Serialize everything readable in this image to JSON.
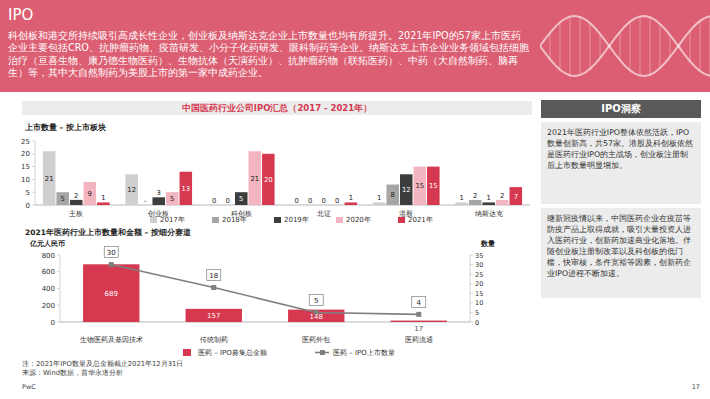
{
  "header": {
    "title": "IPO",
    "intro": "科创板和港交所持续吸引高成长性企业，创业板及纳斯达克企业上市数量也均有所提升。2021年IPO的57家上市医药企业主要包括CRO、抗肿瘤药物、疫苗研发、小分子化药研发、眼科制药等企业。纳斯达克上市企业业务领域包括细胞治疗（亘喜生物、康乃德生物医药）、生物抗体（天演药业）、抗肿瘤药物（联拓医药）、中药（大自然制药、脑再生）等，其中大自然制药为美股上市的第一家中成药企业。"
  },
  "panel_title": "中国医药行业公司IPO汇总（2017 - 2021年）",
  "chart_data": [
    {
      "type": "bar",
      "title": "上市数量 – 按上市板块",
      "categories": [
        "主板",
        "创业板",
        "科创板",
        "北证",
        "港股",
        "纳斯达克"
      ],
      "series": [
        {
          "name": "2017年",
          "color": "#cfcfcf",
          "values": [
            21,
            12,
            0,
            0,
            1,
            1
          ]
        },
        {
          "name": "2018年",
          "color": "#a6a6a6",
          "values": [
            5,
            null,
            0,
            0,
            8,
            2
          ],
          "value_labels": [
            "5",
            "-",
            "0",
            "0",
            "8",
            "2"
          ]
        },
        {
          "name": "2019年",
          "color": "#3d3d3d",
          "values": [
            2,
            3,
            5,
            0,
            12,
            1
          ]
        },
        {
          "name": "2020年",
          "color": "#f3b5bf",
          "values": [
            9,
            5,
            21,
            0,
            15,
            2
          ]
        },
        {
          "name": "2021年",
          "color": "#d6384f",
          "values": [
            1,
            13,
            20,
            1,
            15,
            7
          ]
        }
      ],
      "ylim": [
        0,
        25
      ],
      "yticks": [
        0,
        5,
        10,
        15,
        20,
        25
      ],
      "grid": false,
      "data_labels": true,
      "legend": "bottom"
    },
    {
      "type": "bar",
      "title": "2021年医药行业上市数量和金额 – 按细分赛道",
      "y_label": "亿元人民币",
      "y2_label": "数量",
      "categories": [
        "生物医药及基因技术",
        "传统制药",
        "医药外包",
        "医药流通"
      ],
      "series": [
        {
          "name": "医药 – IPO募集总金额",
          "type": "bar",
          "color": "#d6384f",
          "values": [
            689,
            157,
            148,
            17
          ]
        },
        {
          "name": "医药 – IPO上市数量",
          "type": "line",
          "color": "#7f7f7f",
          "axis": "y2",
          "marker": "square",
          "line_style": "solid",
          "values": [
            30,
            18,
            5,
            4
          ]
        }
      ],
      "ylim": [
        0,
        800
      ],
      "yticks": [
        0,
        200,
        400,
        600,
        800
      ],
      "y2lim": [
        0,
        35
      ],
      "y2ticks": [
        0,
        5,
        10,
        15,
        20,
        25,
        30,
        35
      ],
      "grid": false,
      "data_labels": true,
      "legend": "bottom"
    }
  ],
  "sidebar": {
    "title": "IPO洞察",
    "paragraphs": [
      "2021年医药行业IPO整体依然活跃，IPO数量创新高，共57家。港股及科创板依然是医药行业IPO的主战场，创业板注册制后上市数量明显增加。",
      "继新冠疫情以来，中国医药企业在疫苗等防疫产品上取得成就，吸引大量投资人进入医药行业，创新药加速商业化落地。伴随创业板注册制改革以及科创板的低门槛，快审核，条件宽裕等因素，创新药企业IPO进程不断加速。"
    ]
  },
  "footer": {
    "note": "注：2021年IPO数量及总金额截止2021年12月31日",
    "source": "来源：Wind数据，普华永道分析",
    "brand": "PwC",
    "page": "17"
  }
}
